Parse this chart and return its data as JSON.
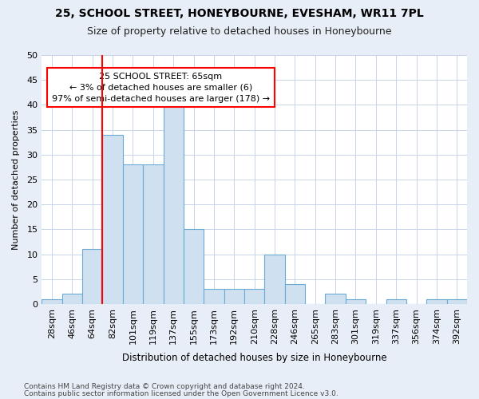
{
  "title1": "25, SCHOOL STREET, HONEYBOURNE, EVESHAM, WR11 7PL",
  "title2": "Size of property relative to detached houses in Honeybourne",
  "xlabel": "Distribution of detached houses by size in Honeybourne",
  "ylabel": "Number of detached properties",
  "footer1": "Contains HM Land Registry data © Crown copyright and database right 2024.",
  "footer2": "Contains public sector information licensed under the Open Government Licence v3.0.",
  "categories": [
    "28sqm",
    "46sqm",
    "64sqm",
    "82sqm",
    "101sqm",
    "119sqm",
    "137sqm",
    "155sqm",
    "173sqm",
    "192sqm",
    "210sqm",
    "228sqm",
    "246sqm",
    "265sqm",
    "283sqm",
    "301sqm",
    "319sqm",
    "337sqm",
    "356sqm",
    "374sqm",
    "392sqm"
  ],
  "values": [
    1,
    2,
    11,
    34,
    28,
    28,
    40,
    15,
    3,
    3,
    3,
    10,
    4,
    0,
    2,
    1,
    0,
    1,
    0,
    1,
    1
  ],
  "bar_color": "#cfe0f0",
  "bar_edge_color": "#6aaad4",
  "red_line_index": 2,
  "annotation_line1": "25 SCHOOL STREET: 65sqm",
  "annotation_line2": "← 3% of detached houses are smaller (6)",
  "annotation_line3": "97% of semi-detached houses are larger (178) →",
  "annotation_box_color": "white",
  "annotation_box_edge_color": "red",
  "red_line_color": "red",
  "ylim": [
    0,
    50
  ],
  "yticks": [
    0,
    5,
    10,
    15,
    20,
    25,
    30,
    35,
    40,
    45,
    50
  ],
  "background_color": "#e8eef7",
  "plot_background_color": "white",
  "grid_color": "#c8d4e8",
  "title_fontsize": 10,
  "subtitle_fontsize": 9
}
